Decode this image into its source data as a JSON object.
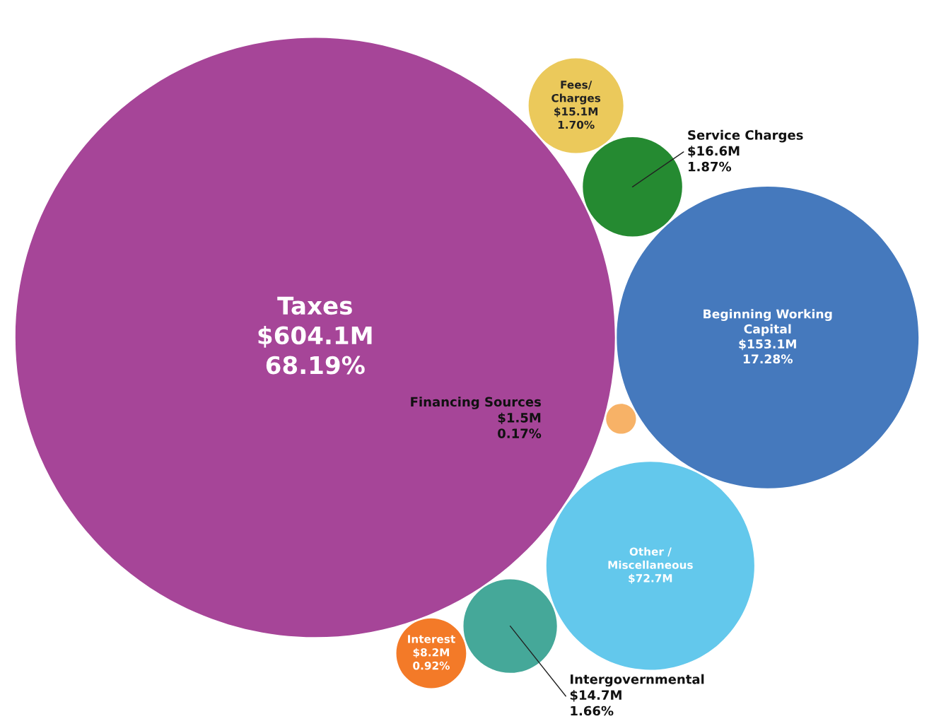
{
  "chart_data": {
    "type": "other",
    "categories": [
      "Taxes",
      "Beginning Working\nCapital",
      "Other /\nMiscellaneous",
      "Service Charges",
      "Intergovernmental",
      "Fees/\nCharges",
      "Interest",
      "Financing Sources"
    ],
    "values": [
      604.1,
      153.1,
      72.7,
      16.6,
      14.7,
      15.1,
      8.2,
      1.5
    ],
    "value_labels": [
      "$604.1M",
      "$153.1M",
      "$72.7M",
      "$16.6M",
      "$14.7M",
      "$15.1M",
      "$8.2M",
      "$1.5M"
    ],
    "annotations": [
      {
        "text": "68.19%",
        "x": "Taxes"
      },
      {
        "text": "17.28%",
        "x": "Beginning Working\nCapital"
      },
      {
        "text": "1.87%",
        "x": "Service Charges"
      },
      {
        "text": "1.66%",
        "x": "Intergovernmental"
      },
      {
        "text": "1.70%",
        "x": "Fees/\nCharges"
      },
      {
        "text": "0.92%",
        "x": "Interest"
      },
      {
        "text": "0.17%",
        "x": "Financing Sources"
      }
    ],
    "colors": [
      "#a64598",
      "#4579bd",
      "#63c8ec",
      "#258a31",
      "#45a899",
      "#ebc95b",
      "#f37a28",
      "#f7b267"
    ]
  }
}
